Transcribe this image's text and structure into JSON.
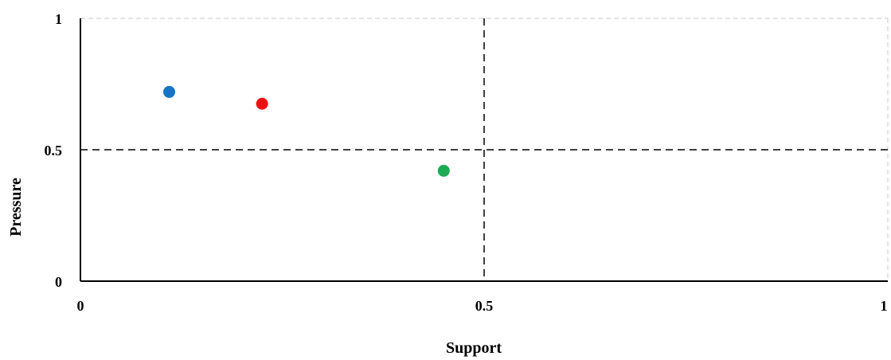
{
  "chart_data": {
    "type": "scatter",
    "title": "",
    "xlabel": "Support",
    "ylabel": "Pressure",
    "xlim": [
      0,
      1
    ],
    "ylim": [
      0,
      1
    ],
    "x_ticks": [
      "0",
      "0.5",
      "1"
    ],
    "y_ticks": [
      "0",
      "0.5",
      "1"
    ],
    "quadrant_lines": {
      "x": 0.5,
      "y": 0.5
    },
    "grid": false,
    "points": [
      {
        "x": 0.11,
        "y": 0.72,
        "color": "#1874c4"
      },
      {
        "x": 0.225,
        "y": 0.675,
        "color": "#ee1111"
      },
      {
        "x": 0.45,
        "y": 0.42,
        "color": "#1faa55"
      }
    ]
  }
}
